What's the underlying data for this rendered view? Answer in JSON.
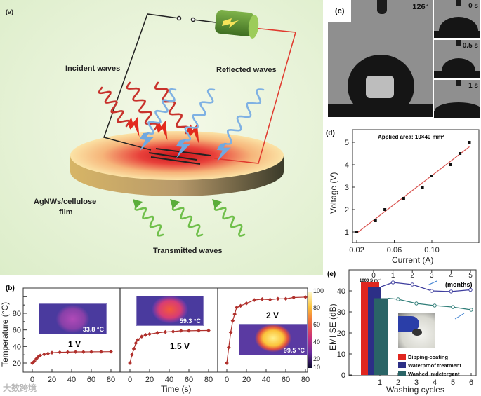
{
  "panel_a": {
    "label": "(a)",
    "incident": "Incident waves",
    "reflected": "Reflected waves",
    "film_line1": "AgNWs/cellulose",
    "film_line2": "film",
    "transmitted": "Transmitted waves"
  },
  "panel_c": {
    "label": "(c)",
    "contact_angle": "126°",
    "times": [
      "0 s",
      "0.5 s",
      "1 s"
    ]
  },
  "watermark": "大数跨境",
  "chart_data": [
    {
      "id": "b",
      "panel_label": "(b)",
      "type": "line",
      "title": "",
      "xlabel": "Time (s)",
      "ylabel": "Temperature (°C)",
      "xlim": [
        0,
        80
      ],
      "ylim": [
        10,
        110
      ],
      "xticks": [
        "0",
        "20",
        "40",
        "60",
        "80"
      ],
      "yticks": [
        20,
        40,
        60,
        80
      ],
      "series": [
        {
          "name": "1 V",
          "inset_temp": "33.8 °C",
          "color": "#b0302c",
          "x": [
            0,
            2,
            4,
            6,
            8,
            12,
            16,
            20,
            28,
            36,
            44,
            52,
            60,
            70,
            80
          ],
          "y": [
            20,
            22,
            25,
            27.5,
            29,
            30.5,
            31.5,
            32.5,
            33,
            33.2,
            33.5,
            33.5,
            33.6,
            33.7,
            33.8
          ]
        },
        {
          "name": "1.5 V",
          "inset_temp": "59.3 °C",
          "color": "#b0302c",
          "x": [
            0,
            2,
            4,
            6,
            8,
            12,
            16,
            20,
            28,
            36,
            44,
            52,
            60,
            70,
            80
          ],
          "y": [
            20,
            30,
            37,
            44,
            48,
            52,
            54,
            55,
            56.5,
            57.5,
            58,
            59,
            59,
            59.2,
            59.3
          ]
        },
        {
          "name": "2 V",
          "inset_temp": "99.5 °C",
          "color": "#b0302c",
          "x": [
            0,
            2,
            4,
            6,
            8,
            10,
            14,
            20,
            28,
            36,
            44,
            52,
            60,
            68,
            80
          ],
          "y": [
            20,
            39,
            57,
            71,
            79,
            87,
            89,
            92,
            96,
            97,
            96.5,
            97.5,
            97.5,
            99,
            99.5
          ]
        }
      ],
      "colorbar": {
        "ticks": [
          "100",
          "80",
          "60",
          "40",
          "20",
          "10"
        ]
      }
    },
    {
      "id": "d",
      "panel_label": "(d)",
      "type": "scatter",
      "title": "Applied area: 10×40 mm²",
      "xlabel": "Current (A)",
      "ylabel": "Voltage (V)",
      "xlim": [
        0.01,
        0.15
      ],
      "ylim": [
        0.5,
        5.5
      ],
      "xticks": [
        "0.02",
        "0.06",
        "0.10"
      ],
      "yticks": [
        "1",
        "2",
        "3",
        "4",
        "5"
      ],
      "points": {
        "x": [
          0.02,
          0.04,
          0.05,
          0.07,
          0.09,
          0.1,
          0.12,
          0.13,
          0.14
        ],
        "y": [
          1,
          1.5,
          2,
          2.5,
          3,
          3.5,
          4,
          4.5,
          5
        ]
      },
      "fit": {
        "x": [
          0.02,
          0.14
        ],
        "y": [
          0.95,
          4.8
        ],
        "color": "#d9534f"
      }
    },
    {
      "id": "e",
      "panel_label": "(e)",
      "type": "bar+line",
      "xlabel": "Washing cycles",
      "ylabel": "EMI SE (dB)",
      "top_axis_label": "(months)",
      "xticks": [
        "1",
        "2",
        "3",
        "4",
        "5",
        "6"
      ],
      "top_ticks": [
        "0",
        "1",
        "2",
        "3",
        "4",
        "5"
      ],
      "yticks": [
        "0",
        "10",
        "20",
        "30",
        "40"
      ],
      "ylim": [
        0,
        48
      ],
      "conductivity_label": "1000 S m⁻¹",
      "bars": [
        {
          "name": "Dipping-coating",
          "value": 44,
          "color": "#e0261f"
        },
        {
          "name": "Waterproof treatment",
          "value": 42,
          "color": "#2c2f86"
        },
        {
          "name": "Washed in detergent",
          "value": 36.5,
          "color": "#2a6466"
        }
      ],
      "series": [
        {
          "name": "Waterproof treatment (months)",
          "axis": "top",
          "color": "#3d3d9e",
          "x": [
            1,
            2,
            3,
            4,
            5
          ],
          "y": [
            44,
            43,
            40,
            39.7,
            40.5
          ]
        },
        {
          "name": "Washed in detergent (cycles)",
          "axis": "bottom",
          "color": "#2f7d78",
          "x": [
            2,
            3,
            4,
            5,
            6
          ],
          "y": [
            36,
            34,
            33,
            32.3,
            31
          ]
        }
      ]
    }
  ]
}
